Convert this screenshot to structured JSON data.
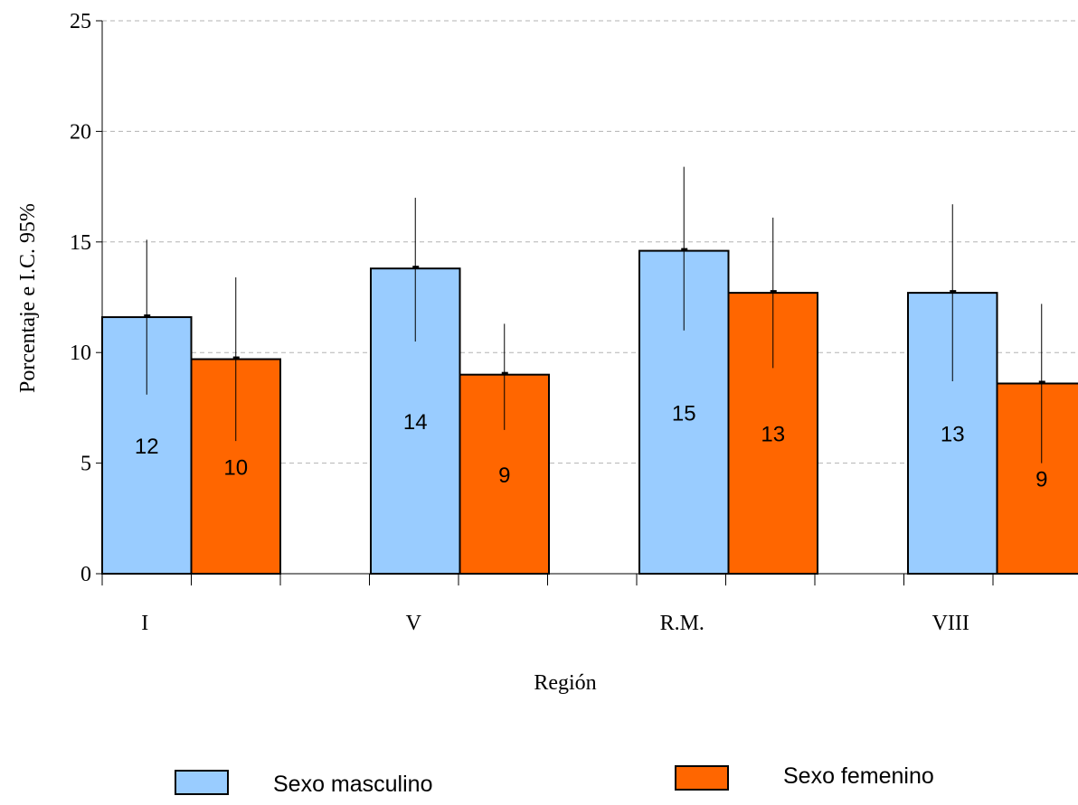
{
  "chart_data": {
    "type": "bar",
    "categories": [
      "I",
      "V",
      "R.M.",
      "VIII"
    ],
    "series": [
      {
        "name": "Sexo masculino",
        "color": "#99CCFF",
        "values": [
          11.6,
          13.8,
          14.6,
          12.7
        ],
        "labels": [
          "12",
          "14",
          "15",
          "13"
        ],
        "ci_low": [
          8.1,
          10.5,
          11.0,
          8.7
        ],
        "ci_high": [
          15.1,
          17.0,
          18.4,
          16.7
        ]
      },
      {
        "name": "Sexo femenino",
        "color": "#FF6600",
        "values": [
          9.7,
          9.0,
          12.7,
          8.6
        ],
        "labels": [
          "10",
          "9",
          "13",
          "9"
        ],
        "ci_low": [
          6.0,
          6.5,
          9.3,
          5.0
        ],
        "ci_high": [
          13.4,
          11.3,
          16.1,
          12.2
        ]
      }
    ],
    "xlabel": "Región",
    "ylabel": "Porcentaje e I.C. 95%",
    "ylim": [
      0,
      25
    ],
    "yticks": [
      "0",
      "5",
      "10",
      "15",
      "20",
      "25"
    ],
    "grid": "horizontal dashed",
    "legend_position": "bottom"
  }
}
